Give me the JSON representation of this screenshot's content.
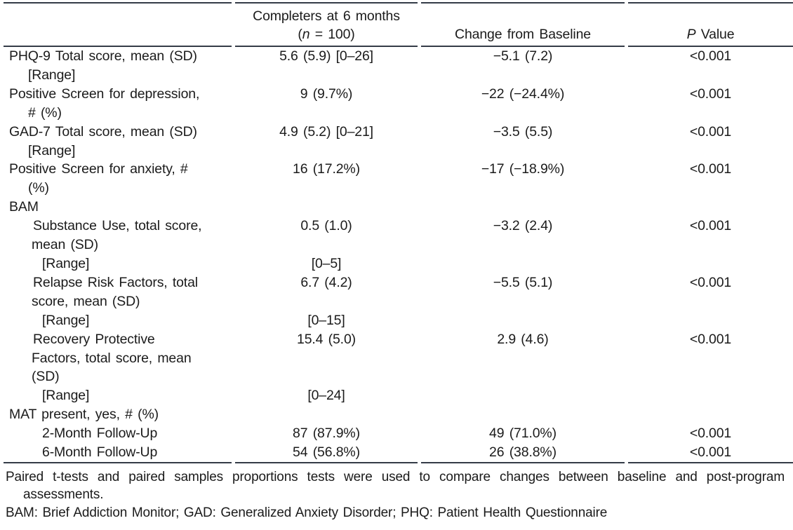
{
  "header": {
    "col2_line1": "Completers at 6 months",
    "col2_line2_prefix": "(",
    "col2_line2_italic": "n",
    "col2_line2_suffix": " = 100)",
    "col3": "Change from Baseline",
    "col4_italic": "P",
    "col4_suffix": " Value"
  },
  "table": {
    "rows": [
      {
        "label_lines": [
          {
            "text": "PHQ-9 Total score, mean (SD)",
            "indent": 0
          },
          {
            "text": "[Range]",
            "indent": 1
          }
        ],
        "completers": "5.6 (5.9) [0–26]",
        "change": "−5.1 (7.2)",
        "p": "<0.001"
      },
      {
        "label_lines": [
          {
            "text": "Positive Screen for depression,",
            "indent": 0
          },
          {
            "text": "# (%)",
            "indent": 1
          }
        ],
        "completers": "9 (9.7%)",
        "change": "−22 (−24.4%)",
        "p": "<0.001"
      },
      {
        "label_lines": [
          {
            "text": "GAD-7 Total score, mean (SD)",
            "indent": 0
          },
          {
            "text": "[Range]",
            "indent": 1
          }
        ],
        "completers": "4.9 (5.2) [0–21]",
        "change": "−3.5 (5.5)",
        "p": "<0.001"
      },
      {
        "label_lines": [
          {
            "text": "Positive Screen for anxiety, #",
            "indent": 0
          },
          {
            "text": "(%)",
            "indent": 1
          }
        ],
        "completers": "16 (17.2%)",
        "change": "−17 (−18.9%)",
        "p": "<0.001"
      },
      {
        "label_lines": [
          {
            "text": "BAM",
            "indent": 0
          }
        ],
        "completers": "",
        "change": "",
        "p": ""
      },
      {
        "label_lines": [
          {
            "text": "Substance Use, total score,",
            "indent": 2
          },
          {
            "text": "mean (SD)",
            "indent": 3
          }
        ],
        "completers": "0.5 (1.0)",
        "change": "−3.2 (2.4)",
        "p": "<0.001"
      },
      {
        "label_lines": [
          {
            "text": "[Range]",
            "indent": 4
          }
        ],
        "completers": "[0–5]",
        "change": "",
        "p": ""
      },
      {
        "label_lines": [
          {
            "text": "Relapse Risk Factors, total",
            "indent": 2
          },
          {
            "text": "score, mean (SD)",
            "indent": 3
          }
        ],
        "completers": "6.7 (4.2)",
        "change": "−5.5 (5.1)",
        "p": "<0.001"
      },
      {
        "label_lines": [
          {
            "text": "[Range]",
            "indent": 4
          }
        ],
        "completers": "[0–15]",
        "change": "",
        "p": ""
      },
      {
        "label_lines": [
          {
            "text": "Recovery Protective",
            "indent": 2
          },
          {
            "text": "Factors, total score, mean",
            "indent": 3
          },
          {
            "text": "(SD)",
            "indent": 3
          }
        ],
        "completers": "15.4 (5.0)",
        "change": "2.9 (4.6)",
        "p": "<0.001"
      },
      {
        "label_lines": [
          {
            "text": "[Range]",
            "indent": 4
          }
        ],
        "completers": "[0–24]",
        "change": "",
        "p": ""
      },
      {
        "label_lines": [
          {
            "text": "MAT present, yes, # (%)",
            "indent": 0
          }
        ],
        "completers": "",
        "change": "",
        "p": ""
      },
      {
        "label_lines": [
          {
            "text": "2-Month Follow-Up",
            "indent": 4
          }
        ],
        "completers": "87 (87.9%)",
        "change": "49 (71.0%)",
        "p": "<0.001"
      },
      {
        "label_lines": [
          {
            "text": "6-Month Follow-Up",
            "indent": 4
          }
        ],
        "completers": "54 (56.8%)",
        "change": "26 (38.8%)",
        "p": "<0.001"
      }
    ]
  },
  "footnotes": {
    "note1": "Paired t-tests and paired samples proportions tests were used to compare changes between baseline and post-program assessments.",
    "note2": "BAM: Brief Addiction Monitor; GAD: Generalized Anxiety Disorder; PHQ: Patient Health Questionnaire"
  },
  "colors": {
    "rule": "#343b47",
    "text": "#1b1b1b",
    "background": "#ffffff"
  }
}
